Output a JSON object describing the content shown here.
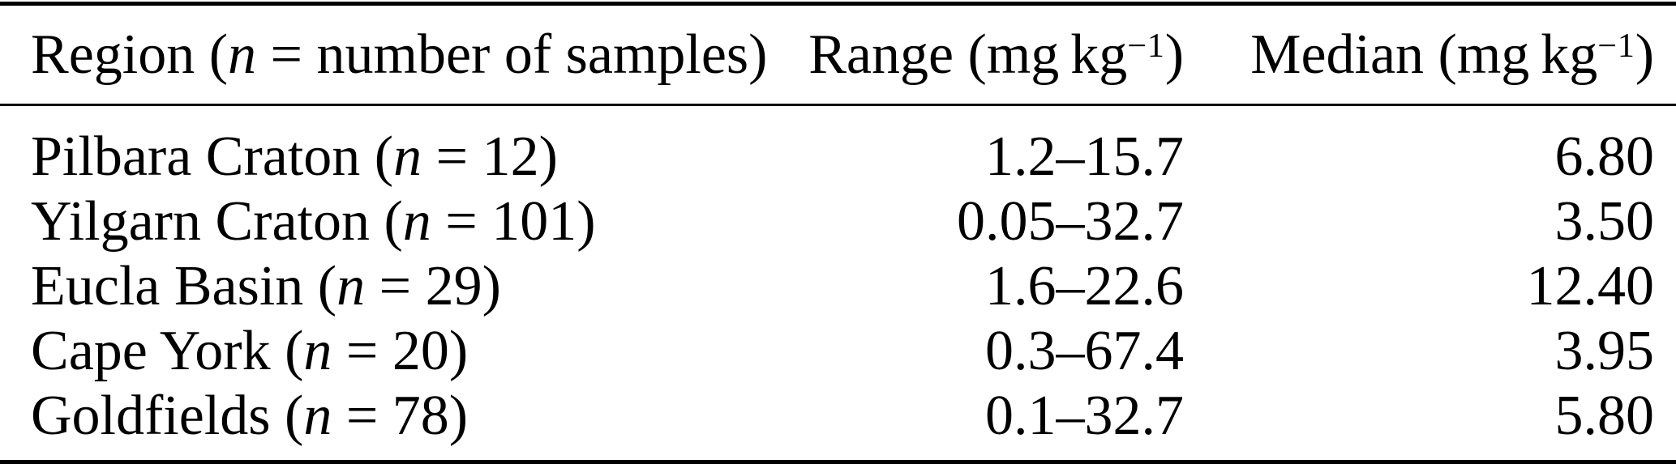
{
  "page": {
    "background": "#ffffff",
    "text_color": "#000000",
    "rule_color": "#000000"
  },
  "table": {
    "header": {
      "region": {
        "prefix": "Region (",
        "n": "n",
        "suffix": " = number of samples)"
      },
      "range": {
        "prefix": "Range (mg kg",
        "sup": "−1",
        "suffix": ")"
      },
      "median": {
        "prefix": "Median (mg kg",
        "sup": "−1",
        "suffix": ")"
      }
    },
    "rows": [
      {
        "region_prefix": "Pilbara Craton (",
        "n": "n",
        "region_suffix": " = 12)",
        "range": "1.2–15.7",
        "median": "6.80"
      },
      {
        "region_prefix": "Yilgarn Craton (",
        "n": "n",
        "region_suffix": " = 101)",
        "range": "0.05–32.7",
        "median": "3.50"
      },
      {
        "region_prefix": "Eucla Basin (",
        "n": "n",
        "region_suffix": " = 29)",
        "range": "1.6–22.6",
        "median": "12.40"
      },
      {
        "region_prefix": "Cape York (",
        "n": "n",
        "region_suffix": " = 20)",
        "range": "0.3–67.4",
        "median": "3.95"
      },
      {
        "region_prefix": "Goldfields (",
        "n": "n",
        "region_suffix": " = 78)",
        "range": "0.1–32.7",
        "median": "5.80"
      }
    ]
  },
  "chart_data": {
    "type": "table",
    "columns": [
      "Region (n = number of samples)",
      "Range (mg kg−1)",
      "Median (mg kg−1)"
    ],
    "rows": [
      [
        "Pilbara Craton (n = 12)",
        "1.2–15.7",
        "6.80"
      ],
      [
        "Yilgarn Craton (n = 101)",
        "0.05–32.7",
        "3.50"
      ],
      [
        "Eucla Basin (n = 29)",
        "1.6–22.6",
        "12.40"
      ],
      [
        "Cape York (n = 20)",
        "0.3–67.4",
        "3.95"
      ],
      [
        "Goldfields (n = 78)",
        "0.1–32.7",
        "5.80"
      ]
    ]
  }
}
